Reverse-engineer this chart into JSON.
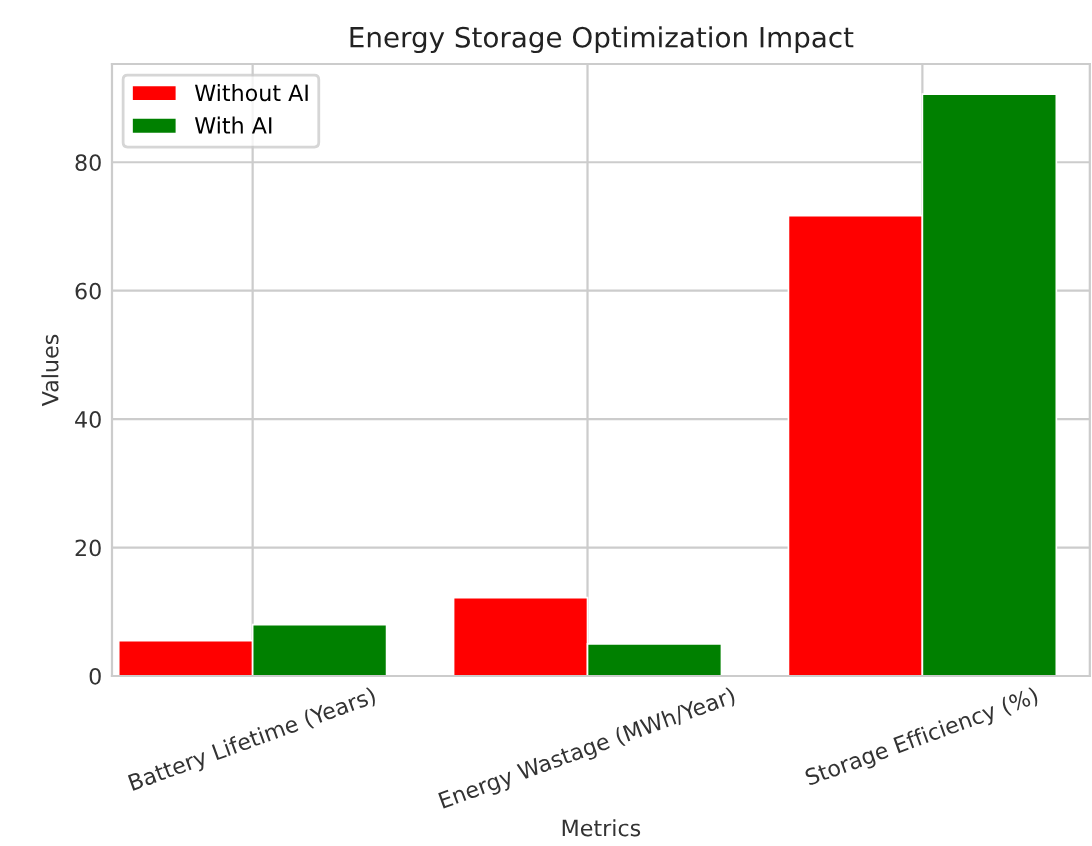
{
  "chart_data": {
    "type": "bar",
    "title": "Energy Storage Optimization Impact",
    "xlabel": "Metrics",
    "ylabel": "Values",
    "categories": [
      "Battery Lifetime (Years)",
      "Energy Wastage (MWh/Year)",
      "Storage Efficiency (%)"
    ],
    "series": [
      {
        "name": "Without AI",
        "color": "#ff0000",
        "values": [
          5.5,
          12.2,
          71.7
        ]
      },
      {
        "name": "With AI",
        "color": "#008000",
        "values": [
          8,
          5,
          90.6
        ]
      }
    ],
    "ylim": [
      0,
      95.3
    ],
    "yticks": [
      0,
      20,
      40,
      60,
      80
    ],
    "grid": true,
    "legend": "top left"
  }
}
